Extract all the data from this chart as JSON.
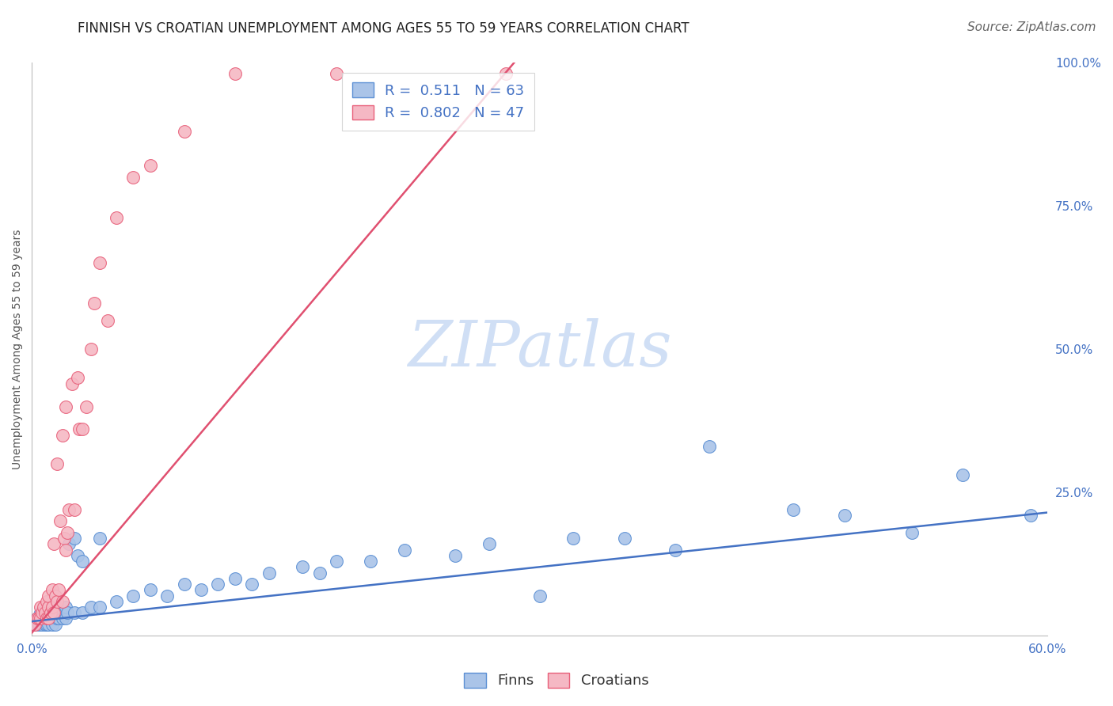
{
  "title": "FINNISH VS CROATIAN UNEMPLOYMENT AMONG AGES 55 TO 59 YEARS CORRELATION CHART",
  "source": "Source: ZipAtlas.com",
  "ylabel": "Unemployment Among Ages 55 to 59 years",
  "xlim": [
    0.0,
    0.6
  ],
  "ylim": [
    0.0,
    1.0
  ],
  "xticks": [
    0.0,
    0.1,
    0.2,
    0.3,
    0.4,
    0.5,
    0.6
  ],
  "xticklabels": [
    "0.0%",
    "",
    "",
    "",
    "",
    "",
    "60.0%"
  ],
  "yticks_right": [
    0.0,
    0.25,
    0.5,
    0.75,
    1.0
  ],
  "yticklabels_right": [
    "",
    "25.0%",
    "50.0%",
    "75.0%",
    "100.0%"
  ],
  "finn_color": "#aac4e8",
  "croatian_color": "#f5b8c4",
  "finn_edge_color": "#5b8fd4",
  "croatian_edge_color": "#e8607a",
  "finn_line_color": "#4472c4",
  "croatian_line_color": "#e05070",
  "finn_R": 0.511,
  "finn_N": 63,
  "croatian_R": 0.802,
  "croatian_N": 47,
  "watermark": "ZIPatlas",
  "watermark_color": "#d0dff5",
  "legend_label_finn": "Finns",
  "legend_label_croatian": "Croatians",
  "finn_scatter_x": [
    0.002,
    0.003,
    0.004,
    0.005,
    0.005,
    0.006,
    0.007,
    0.007,
    0.008,
    0.008,
    0.009,
    0.009,
    0.01,
    0.01,
    0.01,
    0.012,
    0.012,
    0.013,
    0.014,
    0.015,
    0.015,
    0.016,
    0.017,
    0.018,
    0.02,
    0.02,
    0.021,
    0.022,
    0.025,
    0.025,
    0.027,
    0.03,
    0.03,
    0.035,
    0.04,
    0.04,
    0.05,
    0.06,
    0.07,
    0.08,
    0.09,
    0.1,
    0.11,
    0.12,
    0.13,
    0.14,
    0.16,
    0.17,
    0.18,
    0.2,
    0.22,
    0.25,
    0.27,
    0.3,
    0.32,
    0.35,
    0.38,
    0.4,
    0.45,
    0.48,
    0.52,
    0.55,
    0.59
  ],
  "finn_scatter_y": [
    0.02,
    0.03,
    0.02,
    0.03,
    0.04,
    0.02,
    0.03,
    0.04,
    0.02,
    0.03,
    0.02,
    0.04,
    0.02,
    0.03,
    0.05,
    0.02,
    0.04,
    0.03,
    0.02,
    0.03,
    0.05,
    0.03,
    0.04,
    0.03,
    0.03,
    0.05,
    0.04,
    0.16,
    0.04,
    0.17,
    0.14,
    0.04,
    0.13,
    0.05,
    0.05,
    0.17,
    0.06,
    0.07,
    0.08,
    0.07,
    0.09,
    0.08,
    0.09,
    0.1,
    0.09,
    0.11,
    0.12,
    0.11,
    0.13,
    0.13,
    0.15,
    0.14,
    0.16,
    0.07,
    0.17,
    0.17,
    0.15,
    0.33,
    0.22,
    0.21,
    0.18,
    0.28,
    0.21
  ],
  "croatian_scatter_x": [
    0.002,
    0.003,
    0.004,
    0.005,
    0.005,
    0.006,
    0.007,
    0.008,
    0.009,
    0.009,
    0.01,
    0.01,
    0.01,
    0.011,
    0.012,
    0.012,
    0.013,
    0.013,
    0.014,
    0.015,
    0.015,
    0.016,
    0.017,
    0.018,
    0.018,
    0.019,
    0.02,
    0.02,
    0.021,
    0.022,
    0.024,
    0.025,
    0.027,
    0.028,
    0.03,
    0.032,
    0.035,
    0.037,
    0.04,
    0.045,
    0.05,
    0.06,
    0.07,
    0.09,
    0.12,
    0.18,
    0.28
  ],
  "croatian_scatter_y": [
    0.02,
    0.03,
    0.03,
    0.03,
    0.05,
    0.04,
    0.05,
    0.04,
    0.03,
    0.06,
    0.03,
    0.05,
    0.07,
    0.04,
    0.05,
    0.08,
    0.04,
    0.16,
    0.07,
    0.06,
    0.3,
    0.08,
    0.2,
    0.06,
    0.35,
    0.17,
    0.15,
    0.4,
    0.18,
    0.22,
    0.44,
    0.22,
    0.45,
    0.36,
    0.36,
    0.4,
    0.5,
    0.58,
    0.65,
    0.55,
    0.73,
    0.8,
    0.82,
    0.88,
    0.98,
    0.98,
    0.98
  ],
  "grid_color": "#dddddd",
  "background_color": "#ffffff",
  "title_fontsize": 12,
  "axis_label_fontsize": 10,
  "tick_fontsize": 11,
  "legend_fontsize": 13,
  "source_fontsize": 11,
  "finn_line_x": [
    0.0,
    0.6
  ],
  "finn_line_y": [
    0.025,
    0.215
  ],
  "croatian_line_x": [
    0.0,
    0.285
  ],
  "croatian_line_y": [
    0.005,
    1.0
  ]
}
